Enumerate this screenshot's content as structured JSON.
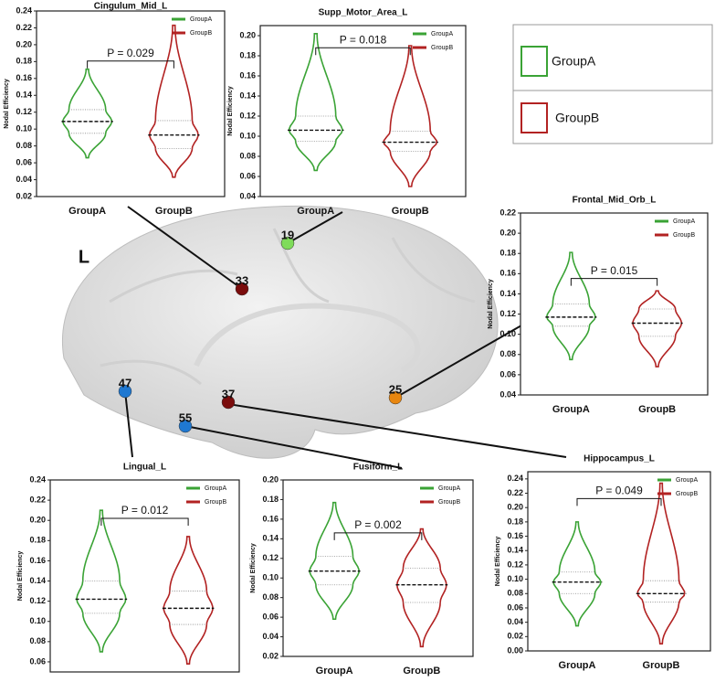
{
  "chart_data": [
    {
      "type": "violin",
      "title": "Cingulum_Mid_L",
      "ylabel": "Nodal Efficiency",
      "categories": [
        "GroupA",
        "GroupB"
      ],
      "annotation": "P = 0.029",
      "ylim": [
        0.02,
        0.24
      ],
      "yticks": [
        0.02,
        0.04,
        0.06,
        0.08,
        {
          "value": 0.1,
          "label": "0.10"
        },
        0.12,
        0.14,
        0.16,
        0.18,
        {
          "value": 0.2,
          "label": "0.20"
        },
        0.22,
        0.24
      ],
      "series": [
        {
          "name": "GroupA",
          "color": "#3aa335",
          "min": 0.066,
          "q1": 0.095,
          "median": 0.109,
          "q3": 0.123,
          "max": 0.171
        },
        {
          "name": "GroupB",
          "color": "#b22222",
          "min": 0.043,
          "q1": 0.077,
          "median": 0.093,
          "q3": 0.11,
          "max": 0.223
        }
      ]
    },
    {
      "type": "violin",
      "title": "Supp_Motor_Area_L",
      "ylabel": "Nodal Efficiency",
      "categories": [
        "GroupA",
        "GroupB"
      ],
      "annotation": "P = 0.018",
      "ylim": [
        0.04,
        0.21
      ],
      "yticks": [
        0.04,
        0.06,
        0.08,
        {
          "value": 0.1,
          "label": "0.10"
        },
        0.12,
        0.14,
        0.16,
        0.18,
        {
          "value": 0.2,
          "label": "0.20"
        }
      ],
      "series": [
        {
          "name": "GroupA",
          "color": "#3aa335",
          "min": 0.066,
          "q1": 0.095,
          "median": 0.106,
          "q3": 0.12,
          "max": 0.202
        },
        {
          "name": "GroupB",
          "color": "#b22222",
          "min": 0.05,
          "q1": 0.085,
          "median": 0.094,
          "q3": 0.105,
          "max": 0.19
        }
      ]
    },
    {
      "type": "violin",
      "title": "Frontal_Mid_Orb_L",
      "ylabel": "Nodal Efficiency",
      "categories": [
        "GroupA",
        "GroupB"
      ],
      "annotation": "P = 0.015",
      "ylim": [
        0.04,
        0.22
      ],
      "yticks": [
        0.04,
        0.06,
        0.08,
        {
          "value": 0.1,
          "label": "0.10"
        },
        0.12,
        0.14,
        0.16,
        0.18,
        {
          "value": 0.2,
          "label": "0.20"
        },
        0.22
      ],
      "series": [
        {
          "name": "GroupA",
          "color": "#3aa335",
          "min": 0.075,
          "q1": 0.108,
          "median": 0.117,
          "q3": 0.13,
          "max": 0.181
        },
        {
          "name": "GroupB",
          "color": "#b22222",
          "min": 0.068,
          "q1": 0.098,
          "median": 0.111,
          "q3": 0.125,
          "max": 0.143
        }
      ]
    },
    {
      "type": "violin",
      "title": "Lingual_L",
      "ylabel": "Nodal Efficiency",
      "categories": [
        "GroupA",
        "GroupB"
      ],
      "annotation": "P = 0.012",
      "ylim": [
        0.05,
        0.24
      ],
      "yticks": [
        0.06,
        0.08,
        {
          "value": 0.1,
          "label": "0.10"
        },
        0.12,
        0.14,
        0.16,
        0.18,
        {
          "value": 0.2,
          "label": "0.20"
        },
        0.22,
        0.24
      ],
      "series": [
        {
          "name": "GroupA",
          "color": "#3aa335",
          "min": 0.07,
          "q1": 0.108,
          "median": 0.122,
          "q3": 0.14,
          "max": 0.21
        },
        {
          "name": "GroupB",
          "color": "#b22222",
          "min": 0.058,
          "q1": 0.097,
          "median": 0.113,
          "q3": 0.13,
          "max": 0.184
        }
      ]
    },
    {
      "type": "violin",
      "title": "Fusiform_L",
      "ylabel": "Nodal Efficiency",
      "categories": [
        "GroupA",
        "GroupB"
      ],
      "annotation": "P = 0.002",
      "ylim": [
        0.02,
        0.2
      ],
      "yticks": [
        0.02,
        0.04,
        0.06,
        0.08,
        {
          "value": 0.1,
          "label": "0.10"
        },
        0.12,
        0.14,
        0.16,
        0.18,
        {
          "value": 0.2,
          "label": "0.20"
        }
      ],
      "series": [
        {
          "name": "GroupA",
          "color": "#3aa335",
          "min": 0.058,
          "q1": 0.093,
          "median": 0.107,
          "q3": 0.122,
          "max": 0.177
        },
        {
          "name": "GroupB",
          "color": "#b22222",
          "min": 0.03,
          "q1": 0.075,
          "median": 0.093,
          "q3": 0.11,
          "max": 0.15
        }
      ]
    },
    {
      "type": "violin",
      "title": "Hippocampus_L",
      "ylabel": "Nodal Efficiency",
      "categories": [
        "GroupA",
        "GroupB"
      ],
      "annotation": "P = 0.049",
      "ylim": [
        0,
        0.25
      ],
      "yticks": [
        {
          "value": 0,
          "label": "0.00"
        },
        0.02,
        0.04,
        0.06,
        0.08,
        {
          "value": 0.1,
          "label": "0.10"
        },
        0.12,
        0.14,
        0.16,
        0.18,
        {
          "value": 0.2,
          "label": "0.20"
        },
        0.22,
        0.24
      ],
      "series": [
        {
          "name": "GroupA",
          "color": "#3aa335",
          "min": 0.035,
          "q1": 0.08,
          "median": 0.096,
          "q3": 0.11,
          "max": 0.18
        },
        {
          "name": "GroupB",
          "color": "#b22222",
          "min": 0.01,
          "q1": 0.068,
          "median": 0.08,
          "q3": 0.098,
          "max": 0.234
        }
      ]
    }
  ],
  "brain": {
    "hemisphere": "L",
    "nodes": [
      {
        "label": "19",
        "color": "#7fdc5a"
      },
      {
        "label": "33",
        "color": "#7a0c0c"
      },
      {
        "label": "37",
        "color": "#7a0c0c"
      },
      {
        "label": "25",
        "color": "#e8860f"
      },
      {
        "label": "47",
        "color": "#1f78d1"
      },
      {
        "label": "55",
        "color": "#1f78d1"
      }
    ]
  },
  "legend": {
    "items": [
      {
        "name": "GroupA",
        "color": "#3aa335"
      },
      {
        "name": "GroupB",
        "color": "#b22222"
      }
    ]
  }
}
